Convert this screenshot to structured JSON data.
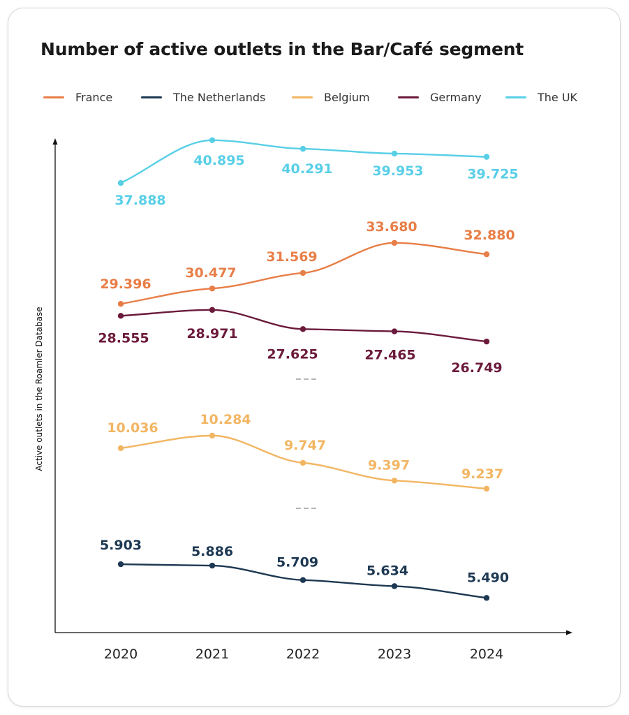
{
  "colors": {
    "France": "#e87e47",
    "The Netherlands": "#1d3852",
    "Belgium": "#f2b663",
    "Germany": "#6b1a3b",
    "The UK": "#58cfe7"
  },
  "chart_data": {
    "type": "line",
    "title": "Number of active outlets in the Bar/Café segment",
    "ylabel": "Active outlets in the Roamler Database",
    "xlabel": "",
    "y_axis_broken": true,
    "legend_position": "top",
    "grid": false,
    "categories": [
      "2020",
      "2021",
      "2022",
      "2023",
      "2024"
    ],
    "series": [
      {
        "name": "France",
        "values": [
          29396,
          30477,
          31569,
          33680,
          32880
        ],
        "labels": [
          "29.396",
          "30.477",
          "31.569",
          "33.680",
          "32.880"
        ]
      },
      {
        "name": "The Netherlands",
        "values": [
          5903,
          5886,
          5709,
          5634,
          5490
        ],
        "labels": [
          "5.903",
          "5.886",
          "5.709",
          "5.634",
          "5.490"
        ]
      },
      {
        "name": "Belgium",
        "values": [
          10036,
          10284,
          9747,
          9397,
          9237
        ],
        "labels": [
          "10.036",
          "10.284",
          "9.747",
          "9.397",
          "9.237"
        ]
      },
      {
        "name": "Germany",
        "values": [
          28555,
          28971,
          27625,
          27465,
          26749
        ],
        "labels": [
          "28.555",
          "28.971",
          "27.625",
          "27.465",
          "26.749"
        ]
      },
      {
        "name": "The UK",
        "values": [
          37888,
          40895,
          40291,
          39953,
          39725
        ],
        "labels": [
          "37.888",
          "40.895",
          "40.291",
          "39.953",
          "39.725"
        ]
      }
    ]
  }
}
